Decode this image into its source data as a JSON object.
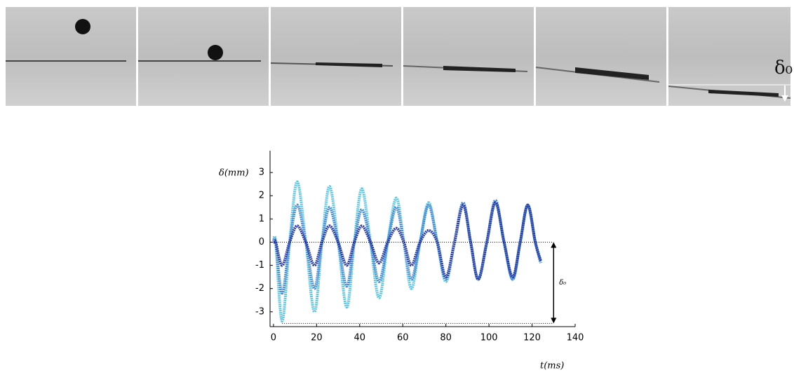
{
  "photo_label": "δ₀",
  "chart_data": {
    "type": "line",
    "y_label": "δ(mm)",
    "x_label": "t(ms)",
    "xlim": [
      -1.6,
      140
    ],
    "ylim": [
      -3.64,
      3.94
    ],
    "xticks": [
      0,
      20,
      40,
      60,
      80,
      100,
      120,
      140
    ],
    "yticks": [
      -3,
      -2,
      -1,
      0,
      1,
      2,
      3
    ],
    "x": [
      0,
      1,
      4,
      7.5,
      11,
      15,
      19,
      22.5,
      26,
      30,
      34,
      37.5,
      41,
      45,
      49,
      53,
      57,
      60.5,
      64,
      68,
      72,
      76,
      80,
      84,
      88,
      91.5,
      95,
      99,
      103,
      107,
      111,
      114.5,
      118,
      121.5,
      124
    ],
    "series": [
      {
        "color": "#5cc6e6",
        "values": [
          0,
          0,
          -3.4,
          0,
          2.6,
          0,
          -3.0,
          0,
          2.4,
          0,
          -2.8,
          0,
          2.3,
          0,
          -2.4,
          0,
          1.9,
          0,
          -2.0,
          0,
          1.7,
          0,
          -1.7,
          0,
          1.6,
          0,
          -1.6,
          0,
          1.7,
          0,
          -1.6,
          0,
          1.6,
          0,
          -0.8
        ]
      },
      {
        "color": "#4a8cd8",
        "values": [
          0,
          0,
          -2.2,
          0,
          1.6,
          0,
          -2.0,
          0,
          1.5,
          0,
          -1.9,
          0,
          1.4,
          0,
          -1.7,
          0,
          1.5,
          0,
          -1.6,
          0,
          1.6,
          0,
          -1.6,
          0,
          1.7,
          0,
          -1.6,
          0,
          1.8,
          0,
          -1.6,
          0,
          1.6,
          0,
          -0.9
        ]
      },
      {
        "color": "#2e3da6",
        "values": [
          0,
          0,
          -1.0,
          0,
          0.7,
          0,
          -1.0,
          0,
          0.7,
          0,
          -1.0,
          0,
          0.7,
          0,
          -0.9,
          0,
          0.6,
          0,
          -1.0,
          0,
          0.5,
          0,
          -1.5,
          0,
          1.6,
          0,
          -1.6,
          0,
          1.7,
          0,
          -1.5,
          0,
          1.6,
          0,
          -0.8
        ]
      }
    ],
    "hlines": [
      {
        "y": 0,
        "x": [
          0,
          130
        ]
      },
      {
        "y": -3.5,
        "x": [
          4,
          130
        ]
      }
    ],
    "arrow": {
      "x": 130,
      "y": [
        0,
        -3.5
      ],
      "label": "δ₀"
    }
  }
}
